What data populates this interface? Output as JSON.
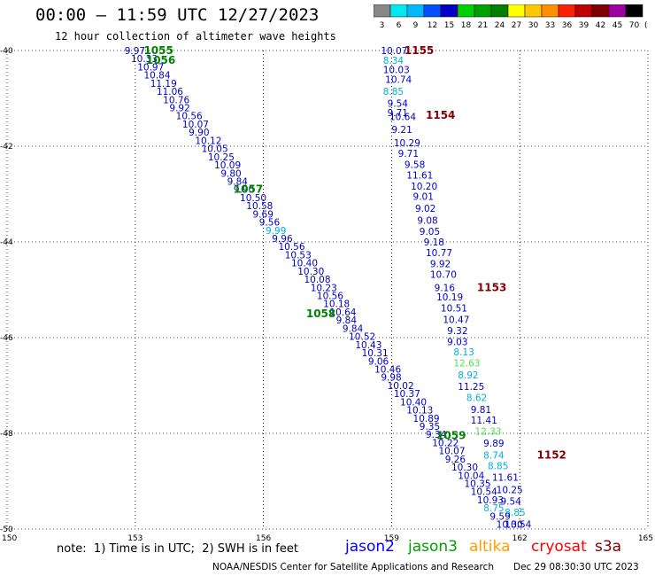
{
  "title": "00:00 – 11:59 UTC 12/27/2023",
  "subtitle": "12 hour collection of altimeter wave heights",
  "color_scale": {
    "unit": "(ft)",
    "levels": [
      "3",
      "6",
      "9",
      "12",
      "15",
      "18",
      "21",
      "24",
      "27",
      "30",
      "33",
      "36",
      "39",
      "42",
      "45",
      "70"
    ],
    "colors": [
      "#888888",
      "#00e8f0",
      "#00b8ff",
      "#0050ff",
      "#0000c8",
      "#00d000",
      "#00a000",
      "#008000",
      "#ffff00",
      "#ffc800",
      "#ff9000",
      "#ff2000",
      "#c00000",
      "#800000",
      "#a000a0",
      "#000000"
    ]
  },
  "note": "note:  1) Time is in UTC;  2) SWH is in feet",
  "satellites": [
    {
      "name": "jason2",
      "color": "#0000ff"
    },
    {
      "name": "jason3",
      "color": "#00a000"
    },
    {
      "name": "altika",
      "color": "#ffa000"
    },
    {
      "name": "cryosat",
      "color": "#ff0000"
    },
    {
      "name": "s3a",
      "color": "#800000"
    }
  ],
  "credit": "NOAA/NESDIS Center for Satellite Applications and Research",
  "timestamp": "Dec 29 08:30:30 UTC 2023",
  "chart_data": {
    "type": "scatter",
    "xlim": [
      150,
      165
    ],
    "ylim": [
      -50,
      -40
    ],
    "x_ticks": [
      "150",
      "153",
      "156",
      "159",
      "162",
      "165"
    ],
    "y_ticks": [
      "-40",
      "-42",
      "-44",
      "-46",
      "-48",
      "-50"
    ],
    "grid": true,
    "track_a": {
      "color_main": "#0000c8",
      "color_light": "#00b0e0",
      "color_green": "#50e050",
      "time_labels": [
        {
          "text": "1155",
          "x": 159.3,
          "y": -40.0,
          "color": "#800000"
        },
        {
          "text": "1154",
          "x": 159.8,
          "y": -41.35,
          "color": "#800000"
        },
        {
          "text": "1153",
          "x": 161.0,
          "y": -44.95,
          "color": "#800000"
        },
        {
          "text": "1152",
          "x": 162.4,
          "y": -48.45,
          "color": "#800000"
        }
      ],
      "points": [
        {
          "x": 158.75,
          "y": -40.0,
          "v": "10.07"
        },
        {
          "x": 158.8,
          "y": -40.2,
          "v": "8.34",
          "c": "light"
        },
        {
          "x": 158.8,
          "y": -40.4,
          "v": "10.03"
        },
        {
          "x": 158.85,
          "y": -40.6,
          "v": "10.74"
        },
        {
          "x": 158.8,
          "y": -40.85,
          "v": "8.85",
          "c": "light"
        },
        {
          "x": 158.9,
          "y": -41.1,
          "v": "9.54"
        },
        {
          "x": 158.9,
          "y": -41.3,
          "v": "9.71"
        },
        {
          "x": 158.95,
          "y": -41.38,
          "v": "10.64"
        },
        {
          "x": 159.0,
          "y": -41.65,
          "v": "9.21"
        },
        {
          "x": 159.05,
          "y": -41.93,
          "v": "10.29"
        },
        {
          "x": 159.15,
          "y": -42.15,
          "v": "9.71"
        },
        {
          "x": 159.3,
          "y": -42.38,
          "v": "9.58"
        },
        {
          "x": 159.35,
          "y": -42.6,
          "v": "11.61"
        },
        {
          "x": 159.45,
          "y": -42.83,
          "v": "10.20"
        },
        {
          "x": 159.5,
          "y": -43.05,
          "v": "9.01"
        },
        {
          "x": 159.55,
          "y": -43.3,
          "v": "9.02"
        },
        {
          "x": 159.6,
          "y": -43.55,
          "v": "9.08"
        },
        {
          "x": 159.65,
          "y": -43.78,
          "v": "9.05"
        },
        {
          "x": 159.75,
          "y": -44.0,
          "v": "9.18"
        },
        {
          "x": 159.8,
          "y": -44.22,
          "v": "10.77"
        },
        {
          "x": 159.9,
          "y": -44.45,
          "v": "9.92"
        },
        {
          "x": 159.9,
          "y": -44.68,
          "v": "10.70"
        },
        {
          "x": 160.0,
          "y": -44.95,
          "v": "9.16"
        },
        {
          "x": 160.05,
          "y": -45.15,
          "v": "10.19"
        },
        {
          "x": 160.15,
          "y": -45.38,
          "v": "10.51"
        },
        {
          "x": 160.2,
          "y": -45.62,
          "v": "10.47"
        },
        {
          "x": 160.3,
          "y": -45.85,
          "v": "9.32"
        },
        {
          "x": 160.3,
          "y": -46.08,
          "v": "9.03"
        },
        {
          "x": 160.45,
          "y": -46.3,
          "v": "8.13",
          "c": "light"
        },
        {
          "x": 160.45,
          "y": -46.53,
          "v": "12.63",
          "c": "green"
        },
        {
          "x": 160.55,
          "y": -46.78,
          "v": "8.92",
          "c": "light"
        },
        {
          "x": 160.55,
          "y": -47.02,
          "v": "11.25"
        },
        {
          "x": 160.75,
          "y": -47.25,
          "v": "8.62",
          "c": "light"
        },
        {
          "x": 160.85,
          "y": -47.5,
          "v": "9.81"
        },
        {
          "x": 160.85,
          "y": -47.72,
          "v": "11.41"
        },
        {
          "x": 160.95,
          "y": -47.95,
          "v": "12.33",
          "c": "green"
        },
        {
          "x": 161.15,
          "y": -48.2,
          "v": "9.89"
        },
        {
          "x": 161.15,
          "y": -48.45,
          "v": "8.74",
          "c": "light"
        },
        {
          "x": 161.25,
          "y": -48.68,
          "v": "8.85",
          "c": "light"
        },
        {
          "x": 161.35,
          "y": -48.92,
          "v": "11.61"
        },
        {
          "x": 161.45,
          "y": -49.18,
          "v": "10.25"
        },
        {
          "x": 161.55,
          "y": -49.42,
          "v": "9.54"
        },
        {
          "x": 161.65,
          "y": -49.65,
          "v": "8.85",
          "c": "light"
        },
        {
          "x": 161.65,
          "y": -49.9,
          "v": "10.54"
        }
      ]
    },
    "track_b": {
      "color_main": "#0000c8",
      "color_light": "#00b0e0",
      "time_label_color": "#008000",
      "time_labels": [
        {
          "text": "1055",
          "x": 153.2,
          "y": -40.0
        },
        {
          "text": "1056",
          "x": 153.25,
          "y": -40.2
        },
        {
          "text": "1057",
          "x": 155.3,
          "y": -42.9
        },
        {
          "text": "1058",
          "x": 157.0,
          "y": -45.5
        },
        {
          "text": "1059",
          "x": 160.05,
          "y": -48.05
        }
      ],
      "points_head": [
        {
          "v": "9.97"
        },
        {
          "v": "10.33"
        },
        {
          "v": "10.97"
        },
        {
          "v": "10.84"
        },
        {
          "v": "11.19"
        },
        {
          "v": "11.06"
        },
        {
          "v": "10.76"
        },
        {
          "v": "9.92"
        },
        {
          "v": "10.56"
        },
        {
          "v": "10.07"
        },
        {
          "v": "9.90"
        },
        {
          "v": "10.12"
        },
        {
          "v": "10.05"
        },
        {
          "v": "10.25"
        },
        {
          "v": "10.09"
        },
        {
          "v": "9.80"
        },
        {
          "v": "9.84"
        },
        {
          "v": "9.90"
        },
        {
          "v": "10.50"
        },
        {
          "v": "10.58"
        },
        {
          "v": "9.69"
        },
        {
          "v": "9.56"
        },
        {
          "v": "9.99",
          "c": "light"
        },
        {
          "v": "9.96"
        },
        {
          "v": "10.56"
        },
        {
          "v": "10.53"
        },
        {
          "v": "10.40"
        },
        {
          "v": "10.30"
        },
        {
          "v": "10.08"
        },
        {
          "v": "10.23"
        },
        {
          "v": "10.56"
        },
        {
          "v": "10.18"
        },
        {
          "v": "10.64"
        },
        {
          "v": "9.84"
        },
        {
          "v": "9.84"
        },
        {
          "v": "10.52"
        },
        {
          "v": "10.43"
        },
        {
          "v": "10.31"
        },
        {
          "v": "9.06"
        },
        {
          "v": "10.46"
        },
        {
          "v": "9.98"
        },
        {
          "v": "10.02"
        },
        {
          "v": "10.37"
        },
        {
          "v": "10.40"
        },
        {
          "v": "10.13"
        },
        {
          "v": "10.89"
        },
        {
          "v": "9.35"
        },
        {
          "v": "9.34"
        },
        {
          "v": "10.22"
        },
        {
          "v": "10.07"
        },
        {
          "v": "9.26"
        },
        {
          "v": "10.30"
        },
        {
          "v": "10.04"
        },
        {
          "v": "10.35"
        },
        {
          "v": "10.54"
        },
        {
          "v": "10.93"
        },
        {
          "v": "8.75",
          "c": "light"
        },
        {
          "v": "9.59"
        },
        {
          "v": "10.30"
        }
      ],
      "start": {
        "x": 152.75,
        "y": -40.0
      },
      "end": {
        "x": 161.45,
        "y": -49.9
      }
    }
  }
}
